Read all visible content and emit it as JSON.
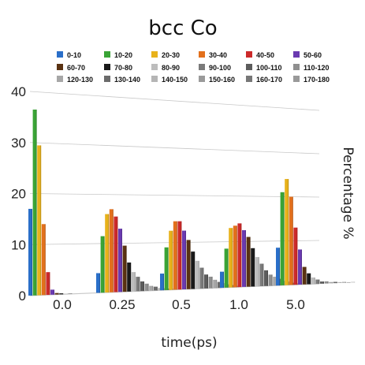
{
  "chart_data": {
    "type": "bar",
    "title": "bcc Co",
    "xlabel": "time(ps)",
    "ylabel": "Percentage %",
    "ylim": [
      0,
      40
    ],
    "yticks": [
      0,
      10,
      20,
      30,
      40
    ],
    "grid": true,
    "legend_position": "top",
    "categories": [
      "0.0",
      "0.25",
      "0.5",
      "1.0",
      "5.0"
    ],
    "series": [
      {
        "name": "0-10",
        "color": "#2a6fc9",
        "values": [
          17.0,
          4.0,
          3.5,
          3.5,
          8.5
        ]
      },
      {
        "name": "10-20",
        "color": "#3aa436",
        "values": [
          36.5,
          11.5,
          9.0,
          8.5,
          21.0
        ]
      },
      {
        "name": "20-30",
        "color": "#e8b21b",
        "values": [
          29.5,
          16.0,
          12.5,
          13.0,
          24.0
        ]
      },
      {
        "name": "30-40",
        "color": "#e3701c",
        "values": [
          14.0,
          17.0,
          14.5,
          13.5,
          20.0
        ]
      },
      {
        "name": "40-50",
        "color": "#cc2a2a",
        "values": [
          4.5,
          15.5,
          14.5,
          14.0,
          13.0
        ]
      },
      {
        "name": "50-60",
        "color": "#6a3ab0",
        "values": [
          1.0,
          13.0,
          12.5,
          12.5,
          8.0
        ]
      },
      {
        "name": "60-70",
        "color": "#5a3212",
        "values": [
          0.3,
          9.5,
          10.5,
          11.0,
          4.0
        ]
      },
      {
        "name": "70-80",
        "color": "#1a1a1a",
        "values": [
          0.2,
          6.0,
          8.0,
          8.5,
          2.5
        ]
      },
      {
        "name": "80-90",
        "color": "#bdbdbd",
        "values": [
          0.1,
          4.0,
          6.0,
          6.5,
          1.5
        ]
      },
      {
        "name": "90-100",
        "color": "#7a7a7a",
        "values": [
          0.1,
          3.0,
          4.5,
          5.0,
          1.0
        ]
      },
      {
        "name": "100-110",
        "color": "#5c5c5c",
        "values": [
          0.0,
          2.0,
          3.0,
          3.5,
          0.5
        ]
      },
      {
        "name": "110-120",
        "color": "#8f8f8f",
        "values": [
          0.0,
          1.5,
          2.5,
          2.5,
          0.5
        ]
      },
      {
        "name": "120-130",
        "color": "#a7a7a7",
        "values": [
          0.0,
          1.0,
          1.8,
          2.0,
          0.3
        ]
      },
      {
        "name": "130-140",
        "color": "#6b6b6b",
        "values": [
          0.0,
          0.8,
          1.3,
          1.5,
          0.3
        ]
      },
      {
        "name": "140-150",
        "color": "#b5b5b5",
        "values": [
          0.0,
          0.5,
          1.0,
          1.0,
          0.2
        ]
      },
      {
        "name": "150-160",
        "color": "#9a9a9a",
        "values": [
          0.0,
          0.4,
          0.7,
          0.8,
          0.2
        ]
      },
      {
        "name": "160-170",
        "color": "#777777",
        "values": [
          0.0,
          0.3,
          0.5,
          0.5,
          0.1
        ]
      },
      {
        "name": "170-180",
        "color": "#999999",
        "values": [
          0.0,
          0.2,
          0.3,
          0.3,
          0.1
        ]
      }
    ]
  }
}
